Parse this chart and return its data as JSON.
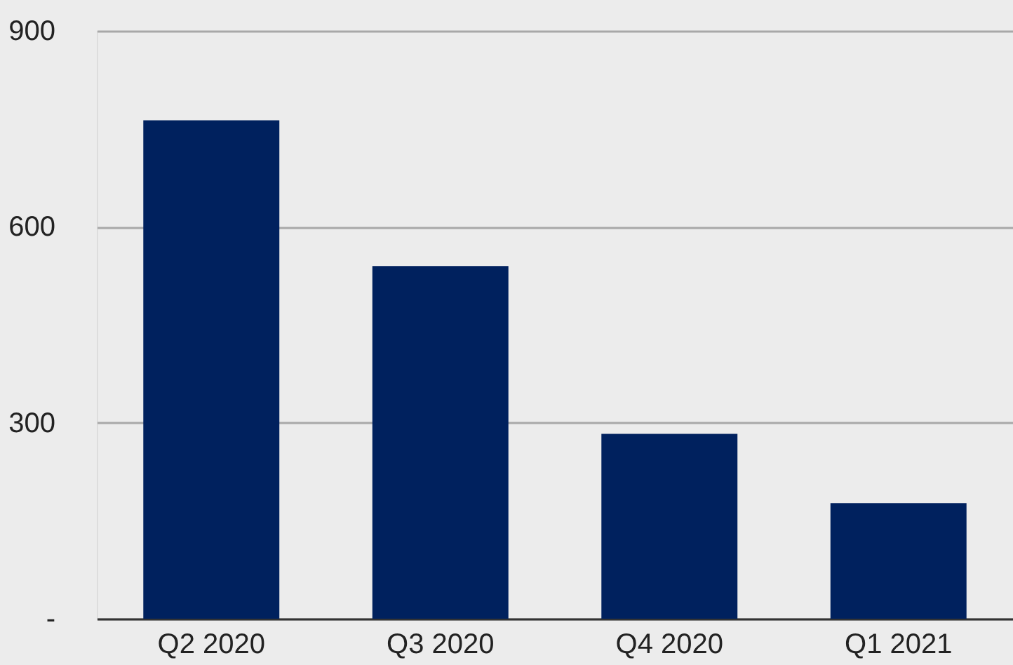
{
  "chart_data": {
    "type": "bar",
    "categories": [
      "Q2 2020",
      "Q3 2020",
      "Q4 2020",
      "Q1 2021"
    ],
    "values": [
      763,
      540,
      283,
      177
    ],
    "color": "#00215e",
    "ylim": [
      0,
      900
    ],
    "yticks": [
      {
        "value": 0,
        "label": "-"
      },
      300,
      600,
      900
    ],
    "grid": "y"
  }
}
